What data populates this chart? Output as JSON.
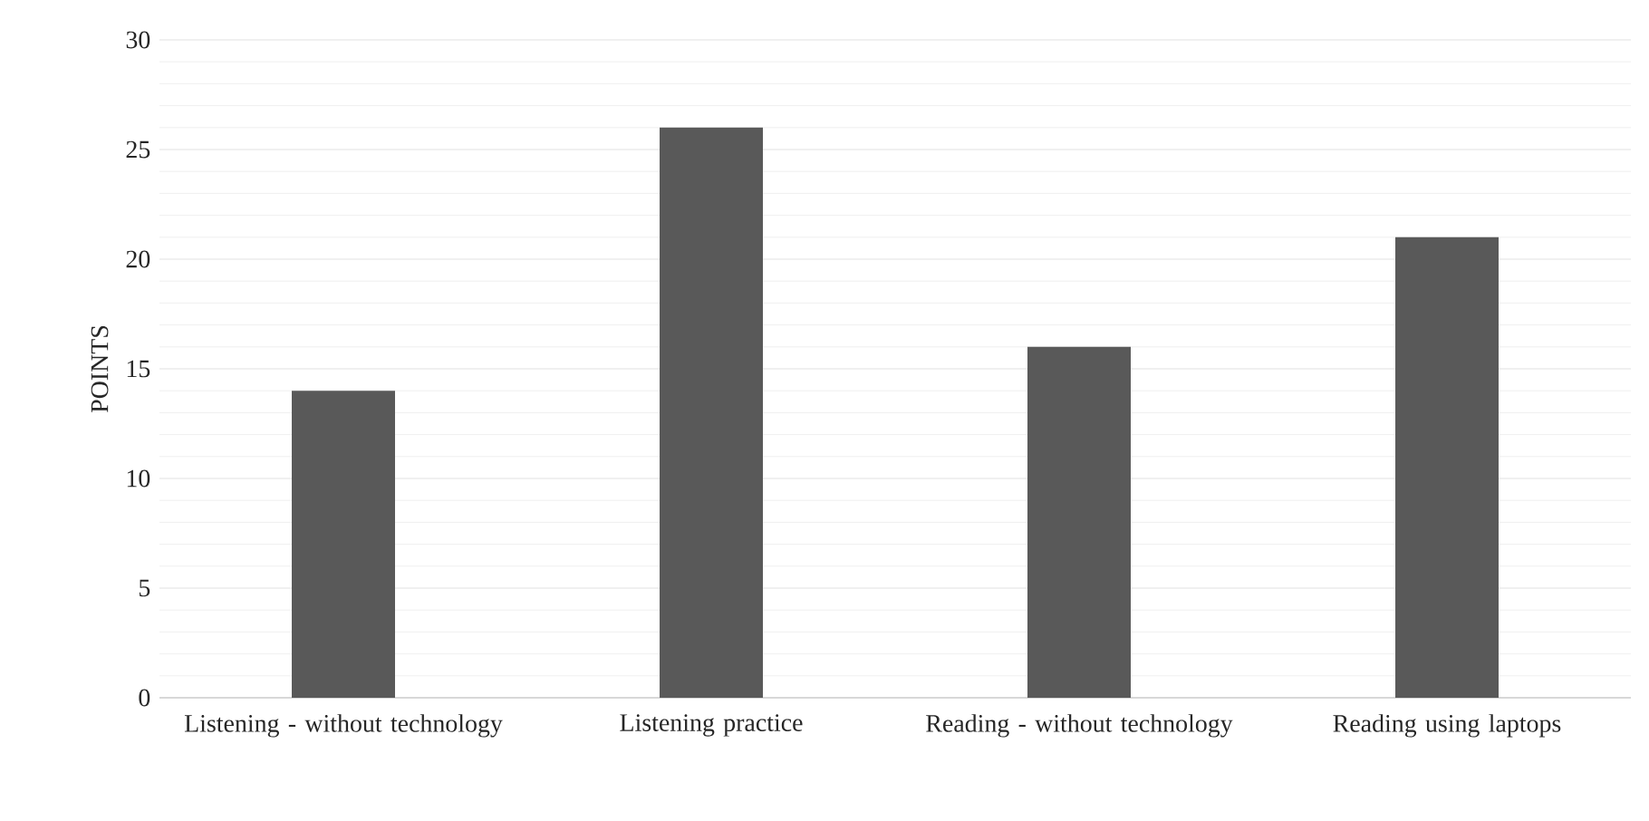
{
  "chart_data": {
    "type": "bar",
    "ylabel": "POINTS",
    "categories": [
      "Listening - without technology",
      "Listening practice",
      "Reading - without technology",
      "Reading using laptops"
    ],
    "values": [
      14,
      26,
      16,
      21
    ],
    "color": "#595959",
    "ylim": [
      0,
      30
    ],
    "yticks": [
      0,
      5,
      10,
      15,
      20,
      25,
      30
    ],
    "grid": true
  }
}
